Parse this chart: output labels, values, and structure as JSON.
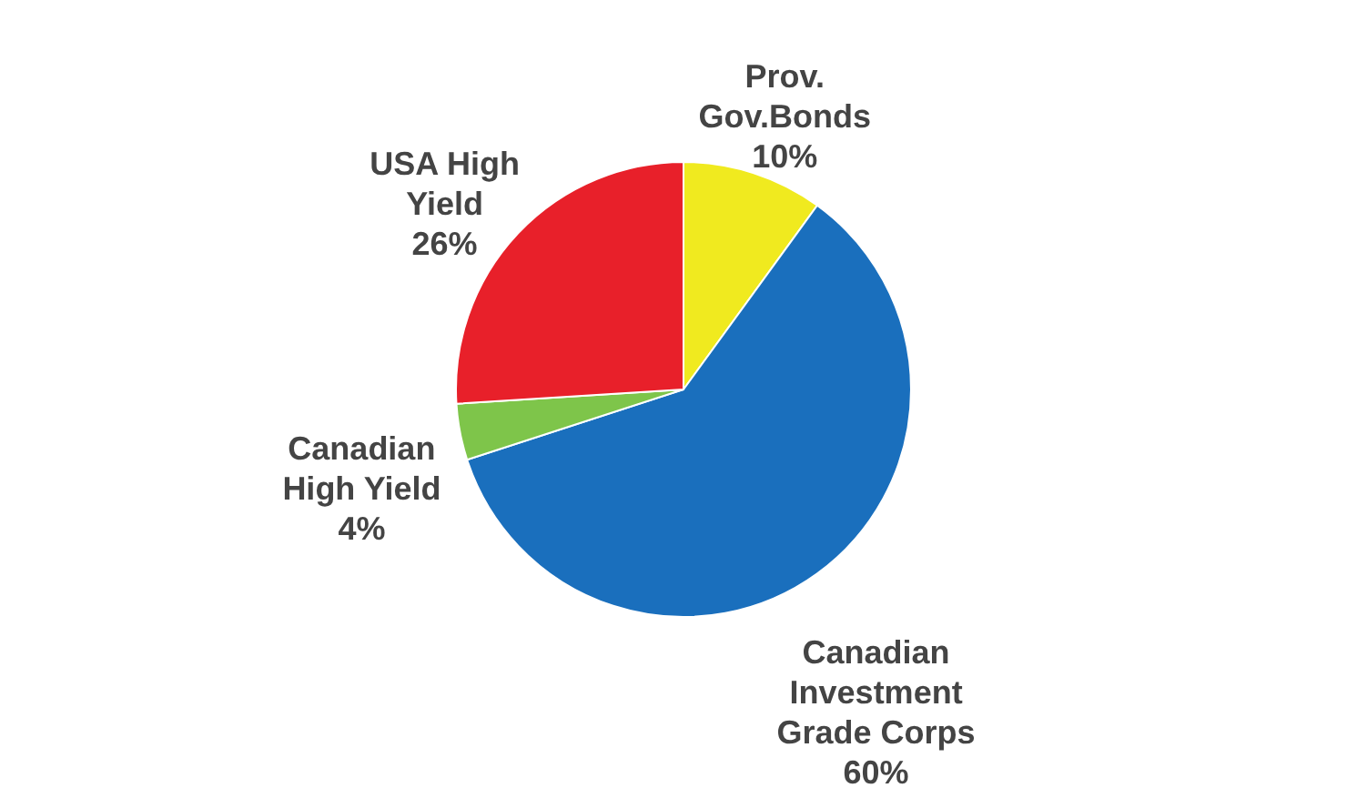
{
  "chart_data": {
    "type": "pie",
    "categories": [
      "Prov. Gov.Bonds",
      "Canadian Investment Grade Corps",
      "Canadian High Yield",
      "USA High Yield"
    ],
    "values": [
      10,
      60,
      4,
      26
    ],
    "colors": [
      "#f0ea1f",
      "#1a6fbd",
      "#7ec54a",
      "#e8202a"
    ],
    "value_labels": [
      "10%",
      "60%",
      "4%",
      "26%"
    ],
    "legend": false
  }
}
